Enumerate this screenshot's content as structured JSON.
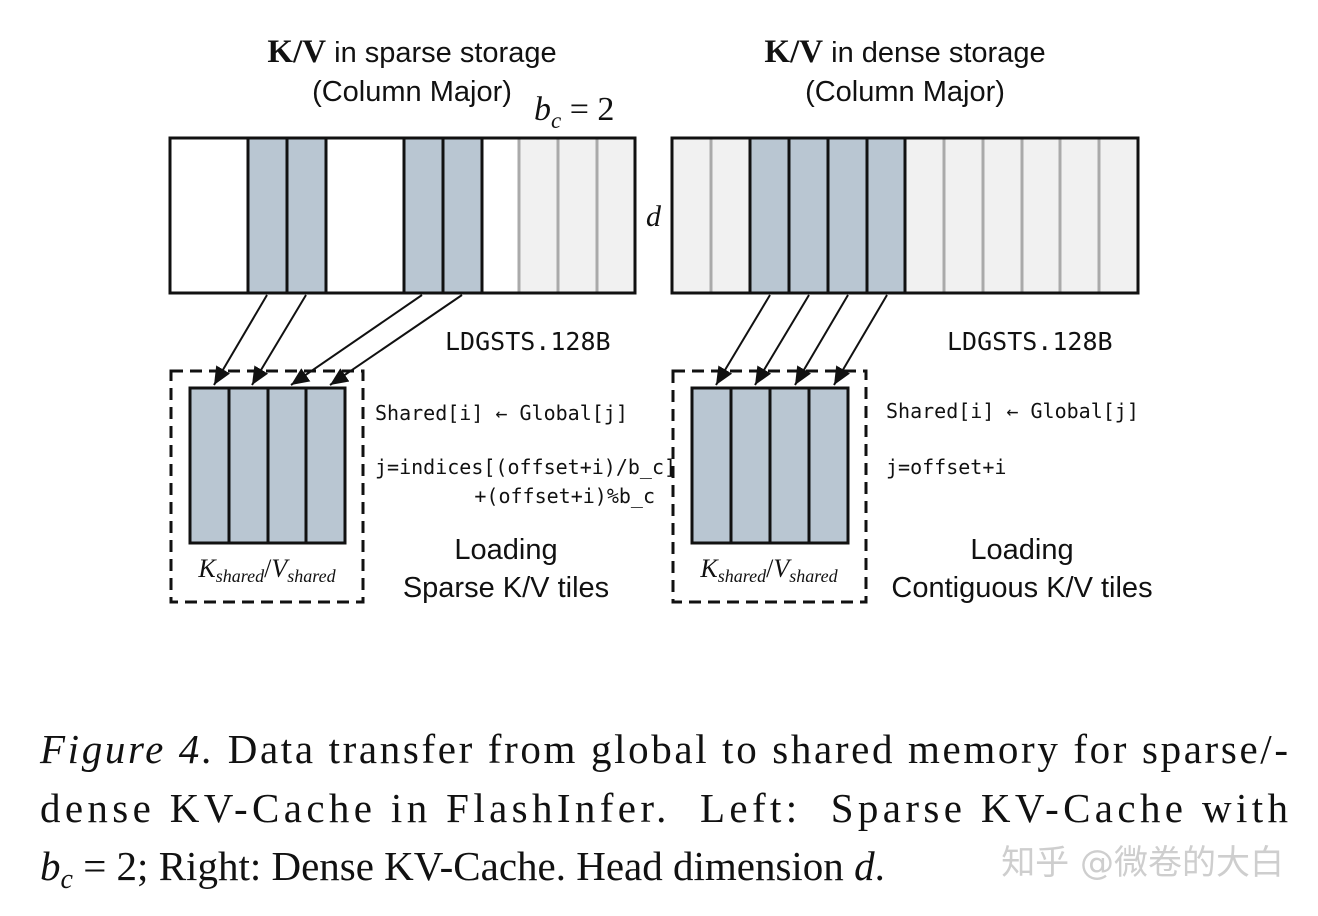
{
  "left": {
    "title_kv": "K/V",
    "title_rest": " in sparse storage",
    "subtitle": "(Column Major)",
    "block_size": {
      "base": "b",
      "sub": "c",
      "rest": " = 2"
    },
    "dim": "d",
    "instruction": "LDGSTS.128B",
    "code": [
      "Shared[i] ← Global[j]",
      "j=indices[(offset+i)/b_c]",
      "+(offset+i)%b_c"
    ],
    "tile_label": {
      "k": "K",
      "k_sub": "shared",
      "sep": "/",
      "v": "V",
      "v_sub": "shared"
    },
    "description": [
      "Loading",
      "Sparse K/V tiles"
    ]
  },
  "right": {
    "title_kv": "K/V",
    "title_rest": " in dense storage",
    "subtitle": "(Column Major)",
    "instruction": "LDGSTS.128B",
    "code": [
      "Shared[i] ← Global[j]",
      "j=offset+i"
    ],
    "tile_label": {
      "k": "K",
      "k_sub": "shared",
      "sep": "/",
      "v": "V",
      "v_sub": "shared"
    },
    "description": [
      "Loading",
      "Contiguous K/V tiles"
    ]
  },
  "caption": {
    "label": "Figure 4.",
    "line1": " Data transfer from global to shared memory for sparse/-",
    "line2": "dense KV-Cache in FlashInfer.  Left:  Sparse KV-Cache with",
    "line3": {
      "base": "b",
      "sub": "c",
      "rest": " = 2; Right: Dense KV-Cache. Head dimension ",
      "dim": "d",
      "end": "."
    }
  },
  "watermark": "知乎 @微卷的大白"
}
